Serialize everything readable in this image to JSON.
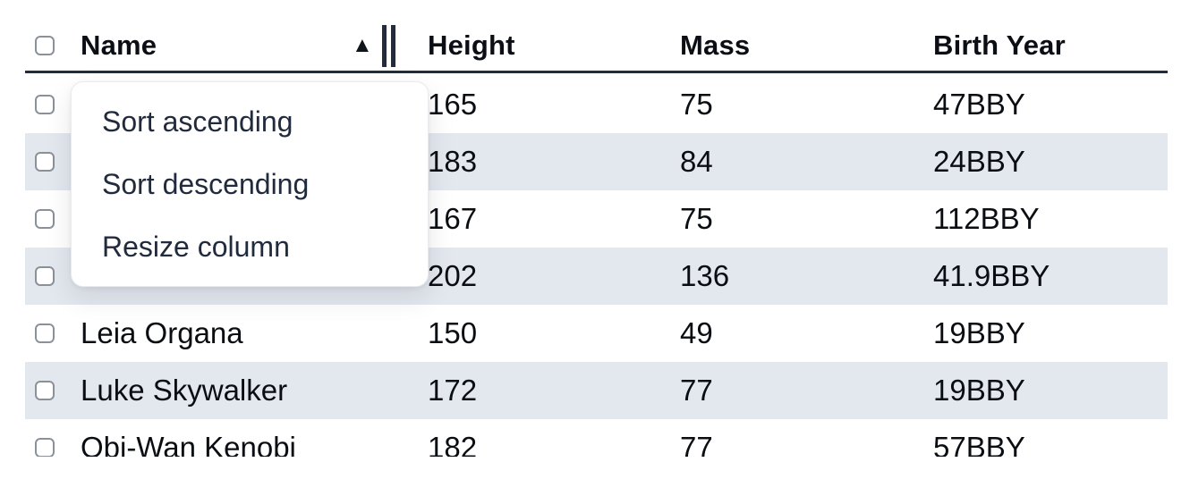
{
  "table": {
    "select_all_checkbox": {
      "checked": false
    },
    "sort_indicator": "▲",
    "columns": [
      {
        "label": "Name",
        "sorted": "ascending",
        "resizable": true
      },
      {
        "label": "Height"
      },
      {
        "label": "Mass"
      },
      {
        "label": "Birth Year"
      }
    ],
    "rows": [
      {
        "name": "",
        "height": "165",
        "mass": "75",
        "birth_year": "47BBY",
        "checked": false
      },
      {
        "name": "",
        "height": "183",
        "mass": "84",
        "birth_year": "24BBY",
        "checked": false
      },
      {
        "name": "",
        "height": "167",
        "mass": "75",
        "birth_year": "112BBY",
        "checked": false
      },
      {
        "name": "",
        "height": "202",
        "mass": "136",
        "birth_year": "41.9BBY",
        "checked": false
      },
      {
        "name": "Leia Organa",
        "height": "150",
        "mass": "49",
        "birth_year": "19BBY",
        "checked": false
      },
      {
        "name": "Luke Skywalker",
        "height": "172",
        "mass": "77",
        "birth_year": "19BBY",
        "checked": false
      },
      {
        "name": "Obi-Wan Kenobi",
        "height": "182",
        "mass": "77",
        "birth_year": "57BBY",
        "checked": false
      }
    ]
  },
  "context_menu": {
    "items": [
      {
        "label": "Sort ascending"
      },
      {
        "label": "Sort descending"
      },
      {
        "label": "Resize column"
      }
    ]
  },
  "colors": {
    "row_stripe": "#e3e8ef",
    "header_border": "#222c3c",
    "cell_text": "#0a0d12",
    "menu_text": "#212b3d",
    "checkbox_border": "#8b9199"
  }
}
